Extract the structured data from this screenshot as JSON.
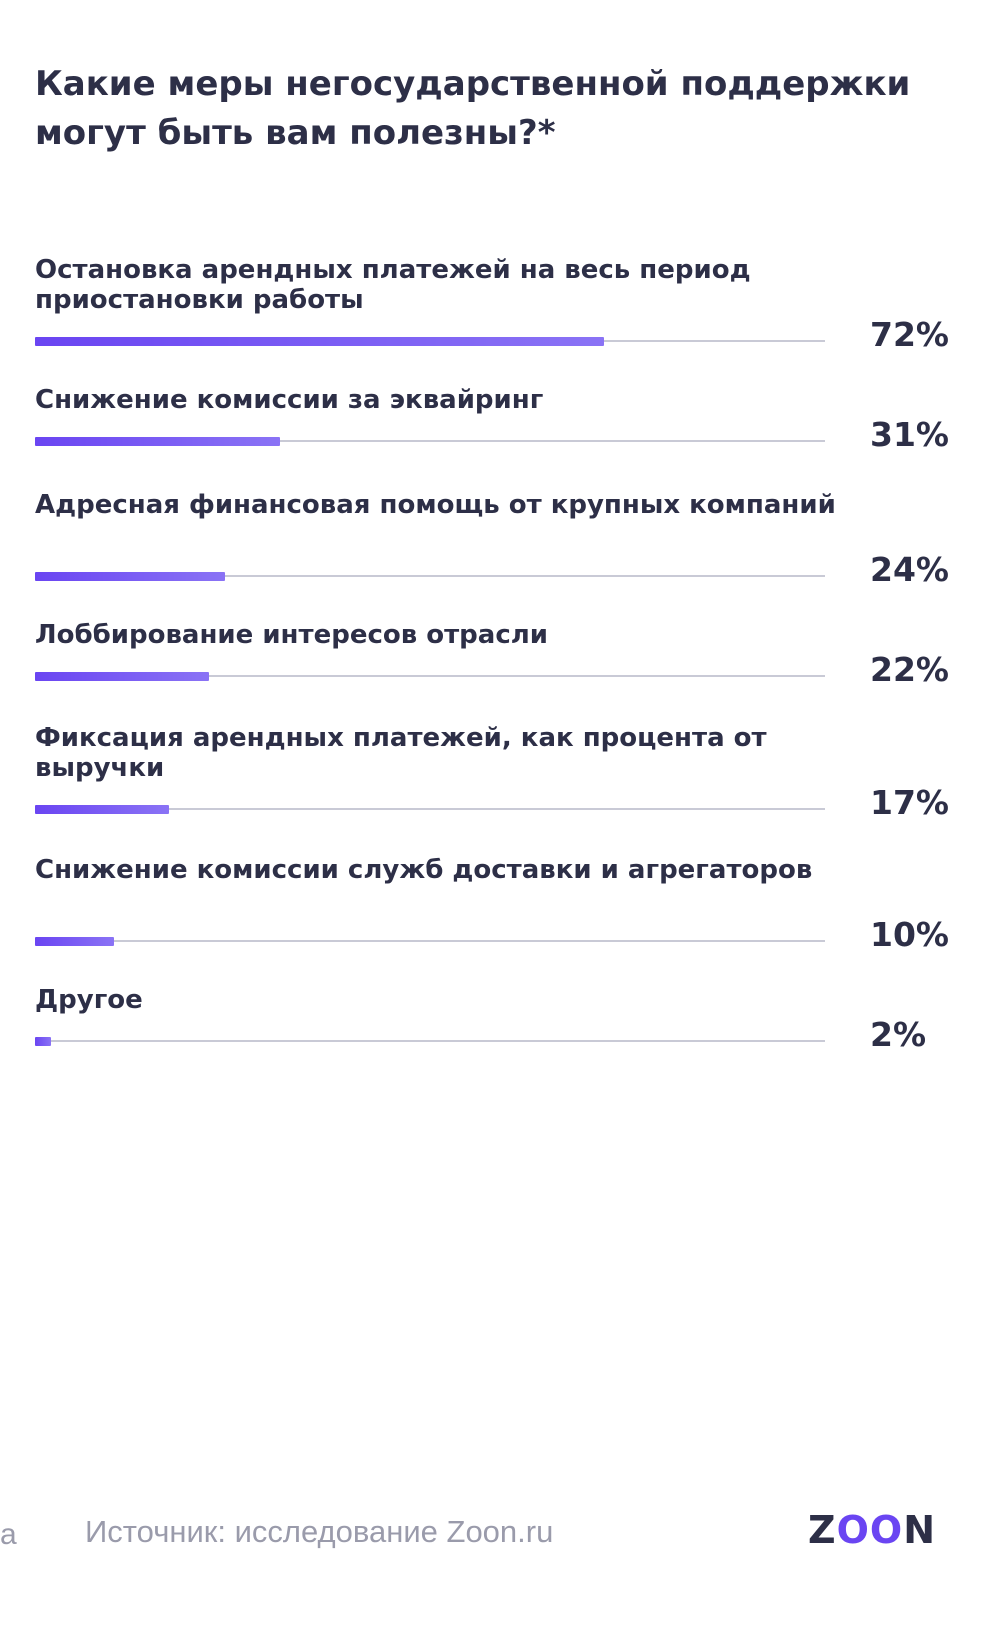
{
  "chart_data": {
    "type": "bar",
    "title": "Какие меры негосударственной поддержки могут быть вам полезны?*",
    "categories": [
      "Остановка арендных платежей на весь период приостановки работы",
      "Снижение комиссии за эквайринг",
      "Адресная финансовая помощь от крупных компаний",
      "Лоббирование интересов отрасли",
      "Фиксация арендных платежей, как процента от выручки",
      "Снижение комиссии служб доставки и агрегаторов",
      "Другое"
    ],
    "values": [
      72,
      31,
      24,
      22,
      17,
      10,
      2
    ],
    "value_labels": [
      "72%",
      "31%",
      "24%",
      "22%",
      "17%",
      "10%",
      "2%"
    ],
    "orientation": "horizontal",
    "xlim": [
      0,
      100
    ],
    "grid": false,
    "colors": {
      "bar": "#6a45f2",
      "track": "#c9cad6",
      "text": "#2d2f47"
    }
  },
  "footer": {
    "cut_text": "а",
    "source": "Источник: исследование Zoon.ru",
    "logo": "ZOON"
  }
}
